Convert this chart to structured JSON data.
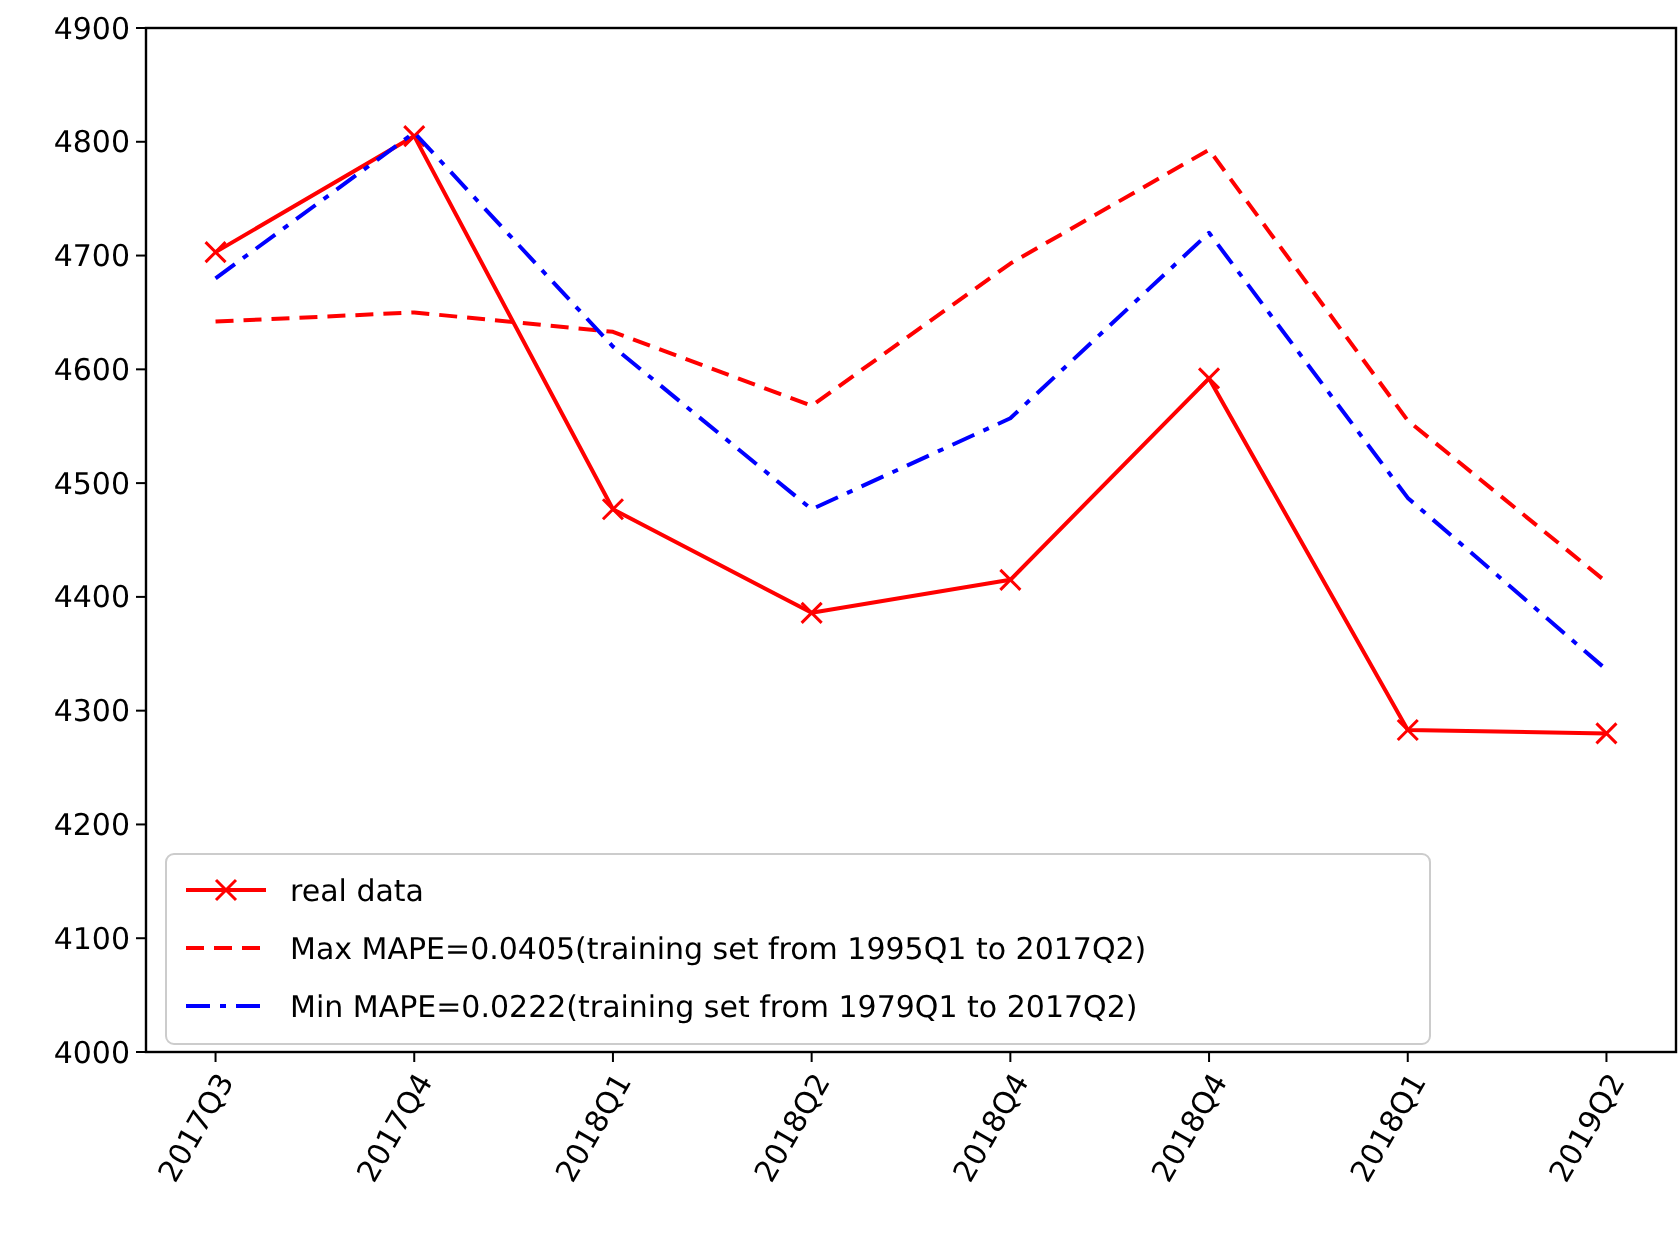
{
  "chart_data": {
    "type": "line",
    "categories": [
      "2017Q3",
      "2017Q4",
      "2018Q1",
      "2018Q2",
      "2018Q4",
      "2018Q4",
      "2018Q1",
      "2019Q2"
    ],
    "ylim": [
      4000,
      4900
    ],
    "yticks": [
      4000,
      4100,
      4200,
      4300,
      4400,
      4500,
      4600,
      4700,
      4800,
      4900
    ],
    "grid": false,
    "legend": "bottom left",
    "series": [
      {
        "name": "real data",
        "color": "#ff0000",
        "line_style": "solid",
        "marker": "cross",
        "values": [
          4703,
          4805,
          4477,
          4386,
          4415,
          4592,
          4283,
          4280
        ]
      },
      {
        "name": "Max MAPE=0.0405(training set from 1995Q1 to 2017Q2)",
        "color": "#ff0000",
        "line_style": "dashed",
        "marker": "none",
        "values": [
          4642,
          4650,
          4633,
          4568,
          4693,
          4793,
          4555,
          4413
        ]
      },
      {
        "name": "Min MAPE=0.0222(training set from 1979Q1 to 2017Q2)",
        "color": "#0000ff",
        "line_style": "dashdot",
        "marker": "none",
        "values": [
          4680,
          4808,
          4620,
          4477,
          4557,
          4720,
          4487,
          4336
        ]
      }
    ]
  }
}
